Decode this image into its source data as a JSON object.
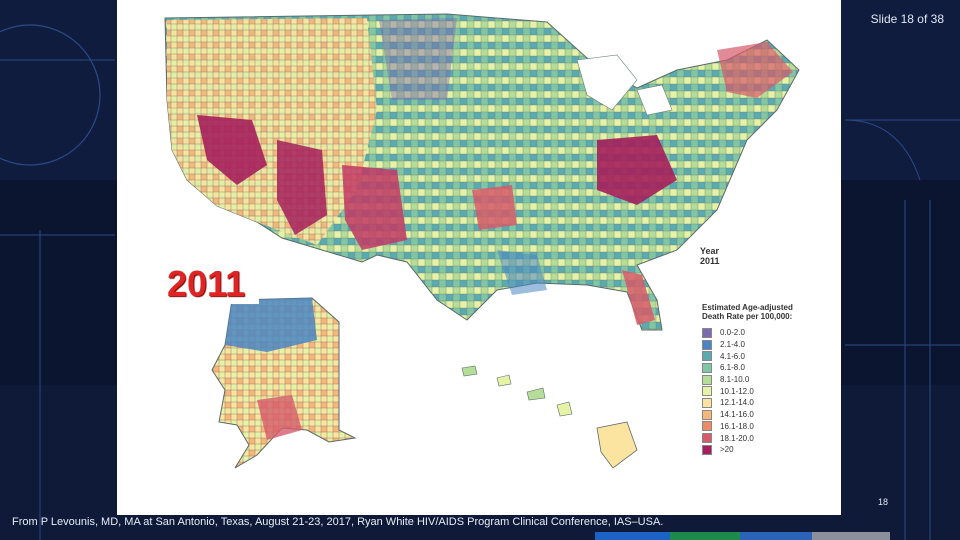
{
  "slide": {
    "counter": "Slide 18 of 38",
    "page_number": "18",
    "source_note": "From P Levounis, MD, MA at San Antonio, Texas, August 21-23, 2017, Ryan White HIV/AIDS Program Clinical Conference, IAS–USA."
  },
  "map": {
    "year_overlay": "2011",
    "year_label_line1": "Year",
    "year_label_line2": "2011",
    "legend_title_line1": "Estimated Age-adjusted",
    "legend_title_line2": "Death Rate per 100,000:",
    "legend": [
      {
        "label": "0.0-2.0",
        "color": "#7b6bb0"
      },
      {
        "label": "2.1-4.0",
        "color": "#4a86c2"
      },
      {
        "label": "4.1-6.0",
        "color": "#5aaab0"
      },
      {
        "label": "6.1-8.0",
        "color": "#7fc6a6"
      },
      {
        "label": "8.1-10.0",
        "color": "#b6dd98"
      },
      {
        "label": "10.1-12.0",
        "color": "#e6f2a6"
      },
      {
        "label": "12.1-14.0",
        "color": "#fbe4a0"
      },
      {
        "label": "14.1-16.0",
        "color": "#f7b77a"
      },
      {
        "label": "16.1-18.0",
        "color": "#ee8a66"
      },
      {
        "label": "18.1-20.0",
        "color": "#d65a6a"
      },
      {
        "label": ">20",
        "color": "#a51f5c"
      }
    ]
  },
  "colors": {
    "background": "#0b1530",
    "bottom_bar": [
      "#1d63c5",
      "#1c8a4a",
      "#2a63b8",
      "#8a8f9b"
    ]
  }
}
